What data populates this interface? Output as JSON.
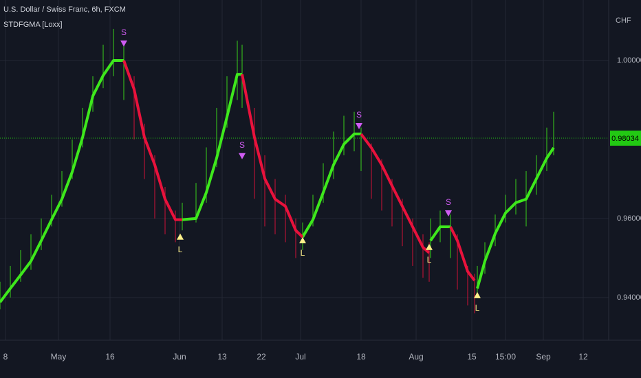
{
  "chart_data": {
    "type": "line",
    "title": "U.S. Dollar / Swiss Franc, 6h, FXCM",
    "subtitle": "STDFGMA [Loxx]",
    "y_axis_label": "CHF",
    "xlim": [
      0,
      177
    ],
    "xticks": [
      {
        "value": 1.6,
        "label": "8"
      },
      {
        "value": 17,
        "label": "May"
      },
      {
        "value": 32,
        "label": "16"
      },
      {
        "value": 52.2,
        "label": "Jun"
      },
      {
        "value": 64.6,
        "label": "13"
      },
      {
        "value": 76,
        "label": "22"
      },
      {
        "value": 87.4,
        "label": "Jul"
      },
      {
        "value": 105,
        "label": "18"
      },
      {
        "value": 121,
        "label": "Aug"
      },
      {
        "value": 137.2,
        "label": "15"
      },
      {
        "value": 147,
        "label": "15:00"
      },
      {
        "value": 158,
        "label": "Sep"
      },
      {
        "value": 169.6,
        "label": "12"
      }
    ],
    "ylim": [
      0.9292,
      1.0153
    ],
    "yticks": [
      {
        "value": 1.0,
        "label": "1.00000"
      },
      {
        "value": 0.96,
        "label": "0.96000"
      },
      {
        "value": 0.94,
        "label": "0.94000"
      }
    ],
    "grid": true,
    "last_price": 0.98034,
    "last_price_color": "#22c913",
    "x": [
      0,
      3,
      6,
      9,
      12,
      15,
      18,
      21,
      24,
      27,
      30,
      33,
      36,
      39,
      42,
      45,
      48,
      51,
      53,
      57,
      60,
      63,
      66,
      69,
      70.4,
      74,
      77,
      80,
      83,
      86,
      88,
      91,
      94,
      97,
      100,
      103,
      105,
      108,
      111,
      114,
      117,
      120,
      123,
      124.8,
      125.2,
      128,
      131,
      133,
      136,
      138,
      138.8,
      141,
      144,
      147,
      150,
      153,
      156,
      159,
      161
    ],
    "series": [
      {
        "color": "#3ee81c",
        "values": [
          0.9388,
          0.9423,
          0.9457,
          0.9492,
          0.9544,
          0.9597,
          0.9649,
          0.9718,
          0.9805,
          0.991,
          0.9962,
          1.0,
          1.0,
          null,
          null,
          null,
          null,
          null,
          0.9597,
          0.96,
          0.9666,
          0.9753,
          0.9857,
          0.9965,
          0.9965,
          null,
          null,
          null,
          null,
          null,
          0.9553,
          0.9597,
          0.9666,
          0.9736,
          0.9788,
          0.9814,
          0.9814,
          null,
          null,
          null,
          null,
          null,
          null,
          null,
          0.9544,
          0.9579,
          0.9579,
          null,
          null,
          null,
          0.9423,
          0.9492,
          0.9562,
          0.9614,
          0.964,
          0.9649,
          0.9701,
          0.9753,
          0.9779
        ]
      },
      {
        "color": "#e8123c",
        "values": [
          null,
          null,
          null,
          null,
          null,
          null,
          null,
          null,
          null,
          null,
          null,
          null,
          1.0,
          0.9927,
          0.9805,
          0.9736,
          0.9649,
          0.9597,
          0.9597,
          null,
          null,
          null,
          null,
          null,
          0.9965,
          0.9805,
          0.9701,
          0.9649,
          0.9631,
          0.957,
          0.9553,
          null,
          null,
          null,
          null,
          null,
          0.9814,
          0.9779,
          0.9736,
          0.9683,
          0.9631,
          0.9579,
          0.9527,
          0.9513,
          null,
          null,
          0.9579,
          0.9544,
          0.9466,
          0.9443,
          null,
          null,
          null,
          null,
          null,
          null,
          null,
          null,
          null
        ]
      }
    ],
    "high": [
      0.944,
      0.948,
      0.952,
      0.956,
      0.96,
      0.966,
      0.972,
      0.98,
      0.988,
      0.996,
      1.004,
      1.008,
      1.004,
      0.996,
      0.984,
      0.976,
      0.968,
      0.962,
      0.964,
      0.969,
      0.978,
      0.988,
      0.996,
      1.005,
      1.004,
      0.988,
      0.976,
      0.97,
      0.966,
      0.96,
      0.959,
      0.966,
      0.974,
      0.982,
      0.986,
      0.987,
      0.983,
      0.979,
      0.975,
      0.97,
      0.965,
      0.96,
      0.956,
      0.954,
      0.96,
      0.962,
      0.961,
      0.956,
      0.948,
      0.946,
      0.948,
      0.954,
      0.961,
      0.966,
      0.97,
      0.972,
      0.976,
      0.983,
      0.987
    ],
    "low": [
      0.937,
      0.94,
      0.944,
      0.947,
      0.952,
      0.958,
      0.963,
      0.97,
      0.978,
      0.987,
      0.993,
      0.996,
      0.99,
      0.98,
      0.97,
      0.96,
      0.956,
      0.954,
      0.957,
      0.959,
      0.964,
      0.973,
      0.983,
      0.99,
      0.988,
      0.965,
      0.958,
      0.956,
      0.954,
      0.95,
      0.952,
      0.958,
      0.964,
      0.97,
      0.976,
      0.977,
      0.972,
      0.965,
      0.962,
      0.958,
      0.953,
      0.948,
      0.945,
      0.944,
      0.95,
      0.954,
      0.95,
      0.942,
      0.938,
      0.936,
      0.94,
      0.946,
      0.953,
      0.959,
      0.961,
      0.958,
      0.966,
      0.972,
      0.976
    ],
    "signals": [
      {
        "label": "S",
        "color": "#cf5cf2",
        "position": "above",
        "points": [
          {
            "x": 36,
            "value": 1.0035
          },
          {
            "x": 70.4,
            "value": 0.975
          },
          {
            "x": 104.4,
            "value": 0.9826
          },
          {
            "x": 130.4,
            "value": 0.9605
          }
        ]
      },
      {
        "label": "L",
        "color": "#fdf08a",
        "position": "below",
        "points": [
          {
            "x": 52.4,
            "value": 0.9562
          },
          {
            "x": 88,
            "value": 0.9553
          },
          {
            "x": 124.8,
            "value": 0.9536
          },
          {
            "x": 138.8,
            "value": 0.9414
          }
        ]
      }
    ]
  }
}
